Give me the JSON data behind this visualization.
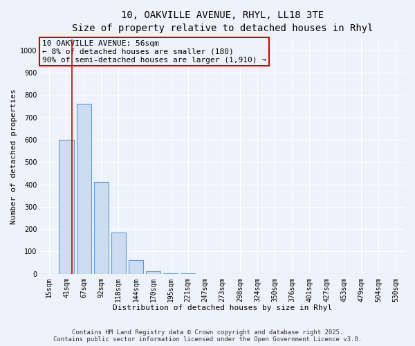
{
  "title_line1": "10, OAKVILLE AVENUE, RHYL, LL18 3TE",
  "title_line2": "Size of property relative to detached houses in Rhyl",
  "xlabel": "Distribution of detached houses by size in Rhyl",
  "ylabel": "Number of detached properties",
  "bar_labels": [
    "15sqm",
    "41sqm",
    "67sqm",
    "92sqm",
    "118sqm",
    "144sqm",
    "170sqm",
    "195sqm",
    "221sqm",
    "247sqm",
    "273sqm",
    "298sqm",
    "324sqm",
    "350sqm",
    "376sqm",
    "401sqm",
    "427sqm",
    "453sqm",
    "479sqm",
    "504sqm",
    "530sqm"
  ],
  "bar_values": [
    0,
    600,
    760,
    410,
    185,
    60,
    10,
    2,
    1,
    0,
    0,
    0,
    0,
    0,
    0,
    0,
    0,
    0,
    0,
    0,
    0
  ],
  "bar_color": "#cddcf0",
  "bar_edge_color": "#5b9bd5",
  "ylim": [
    0,
    1050
  ],
  "yticks": [
    0,
    100,
    200,
    300,
    400,
    500,
    600,
    700,
    800,
    900,
    1000
  ],
  "property_line_x": 1.3,
  "annotation_text": "10 OAKVILLE AVENUE: 56sqm\n← 8% of detached houses are smaller (180)\n90% of semi-detached houses are larger (1,910) →",
  "annotation_box_color": "#cc0000",
  "footer_line1": "Contains HM Land Registry data © Crown copyright and database right 2025.",
  "footer_line2": "Contains public sector information licensed under the Open Government Licence v3.0.",
  "background_color": "#eef2fa",
  "grid_color": "#ffffff",
  "title_fontsize": 10,
  "subtitle_fontsize": 9,
  "axis_label_fontsize": 8,
  "tick_fontsize": 7,
  "footer_fontsize": 6.5,
  "annot_fontsize": 8
}
